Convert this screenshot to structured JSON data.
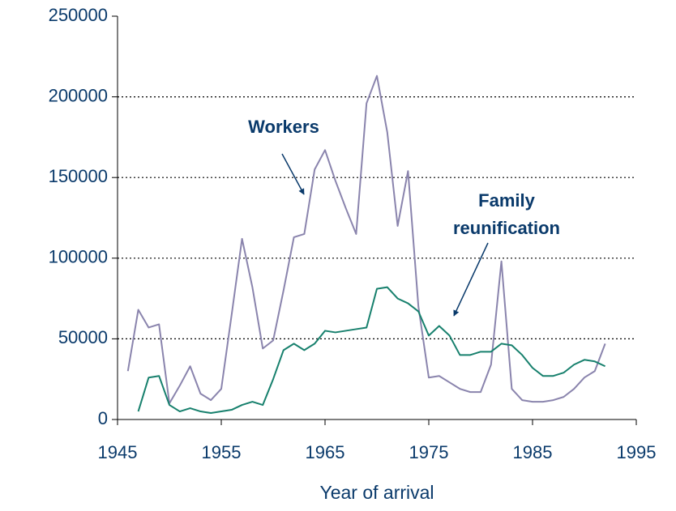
{
  "chart_data": {
    "type": "line",
    "x_label": "Year of arrival",
    "x": [
      1946,
      1947,
      1948,
      1949,
      1950,
      1951,
      1952,
      1953,
      1954,
      1955,
      1956,
      1957,
      1958,
      1959,
      1960,
      1961,
      1962,
      1963,
      1964,
      1965,
      1966,
      1967,
      1968,
      1969,
      1970,
      1971,
      1972,
      1973,
      1974,
      1975,
      1976,
      1977,
      1978,
      1979,
      1980,
      1981,
      1982,
      1983,
      1984,
      1985,
      1986,
      1987,
      1988,
      1989,
      1990,
      1991,
      1992
    ],
    "series": [
      {
        "name": "Workers",
        "color": "#8a84ad",
        "values": [
          30000,
          68000,
          57000,
          59000,
          10000,
          21000,
          33000,
          16000,
          12000,
          19000,
          65000,
          112000,
          82000,
          44000,
          49000,
          80000,
          113000,
          115000,
          155000,
          167000,
          148000,
          131000,
          115000,
          196000,
          213000,
          178000,
          120000,
          154000,
          70000,
          26000,
          27000,
          23000,
          19000,
          17000,
          17000,
          34000,
          98000,
          19000,
          12000,
          11000,
          11000,
          12000,
          14000,
          19000,
          26000,
          30000,
          47000
        ]
      },
      {
        "name": "Family reunification",
        "color": "#17806d",
        "values": [
          null,
          5000,
          26000,
          27000,
          9000,
          5000,
          7000,
          5000,
          4000,
          5000,
          6000,
          9000,
          11000,
          9000,
          25000,
          43000,
          47000,
          43000,
          47000,
          55000,
          54000,
          55000,
          56000,
          57000,
          81000,
          82000,
          75000,
          72000,
          67000,
          52000,
          58000,
          52000,
          40000,
          40000,
          42000,
          42000,
          47000,
          46000,
          40000,
          32000,
          27000,
          27000,
          29000,
          34000,
          37000,
          36000,
          33000
        ]
      }
    ],
    "annotations": [
      [
        "Workers"
      ],
      [
        "Family",
        "reunification"
      ]
    ],
    "xlim": [
      1945,
      1995
    ],
    "xticks": [
      1945,
      1955,
      1965,
      1975,
      1985,
      1995
    ],
    "ylim": [
      0,
      250000
    ],
    "yticks": [
      0,
      50000,
      100000,
      150000,
      200000,
      250000
    ],
    "grid": true
  }
}
